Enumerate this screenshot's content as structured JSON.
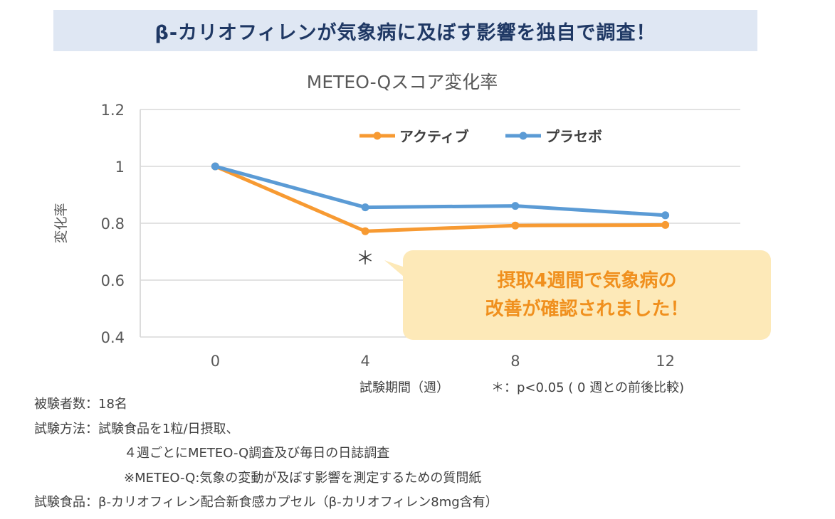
{
  "banner": {
    "title": "β-カリオフィレンが気象病に及ぼす影響を独自で調査！"
  },
  "chart_data": {
    "type": "line",
    "title": "METEO-Qスコア変化率",
    "xlabel": "試験期間（週）",
    "ylabel": "変化率",
    "categories": [
      "0",
      "4",
      "8",
      "12"
    ],
    "ylim": [
      0.4,
      1.2
    ],
    "yticks": [
      "1.2",
      "1",
      "0.8",
      "0.6",
      "0.4"
    ],
    "grid": true,
    "legend_position": "top",
    "series": [
      {
        "name": "アクティブ",
        "color": "#f79a32",
        "values": [
          1.0,
          0.772,
          0.792,
          0.794
        ]
      },
      {
        "name": "プラセボ",
        "color": "#5b9bd5",
        "values": [
          1.0,
          0.856,
          0.861,
          0.828
        ]
      }
    ],
    "annotations": {
      "significance_mark": "＊",
      "significance_note": "＊：p<0.05 ( 0 週との前後比較)"
    }
  },
  "callout": {
    "line1": "摂取4週間で気象病の",
    "line2": "改善が確認されました！",
    "color": "#fde9b8"
  },
  "notes": [
    "被験者数：18名",
    "試験方法：試験食品を1粒/日摂取、",
    "４週ごとにMETEO-Q調査及び毎日の日誌調査",
    "※METEO-Q:気象の変動が及ぼす影響を測定するための質問紙",
    "試験食品：β-カリオフィレン配合新食感カプセル（β-カリオフィレン8mg含有）"
  ]
}
